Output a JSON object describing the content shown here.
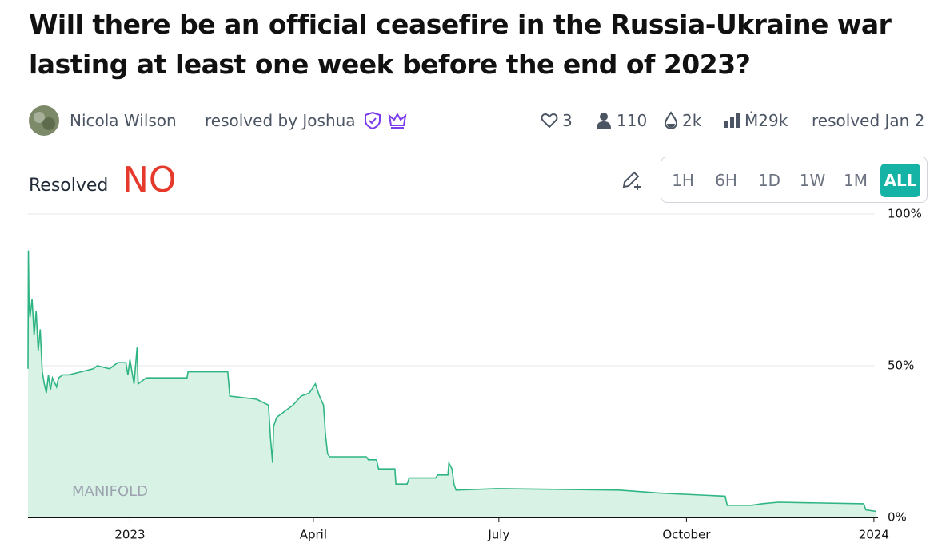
{
  "header": {
    "title": "Will there be an official ceasefire in the Russia-Ukraine war lasting at least one week before the end of 2023?",
    "author": "Nicola Wilson",
    "resolver": "resolved by Joshua",
    "stats": {
      "likes": "3",
      "traders": "110",
      "liquidity": "2k",
      "volume": "Ṁ29k",
      "resolved": "resolved Jan 2"
    }
  },
  "resolution": {
    "label": "Resolved",
    "outcome": "NO"
  },
  "time_buttons": [
    "1H",
    "6H",
    "1D",
    "1W",
    "1M",
    "ALL"
  ],
  "watermark": "MANIFOLD",
  "chart_data": {
    "type": "line",
    "color": "#2fb584",
    "fill_color": "#d9f2e6",
    "x": [
      -50,
      -49.8,
      -49.5,
      -49,
      -48,
      -47,
      -46,
      -45,
      -44,
      -43,
      -42,
      -41,
      -40,
      -39,
      -38,
      -36,
      -35,
      -33,
      -30,
      -24,
      -18,
      -16,
      -10,
      -6,
      -2,
      -1,
      0,
      2,
      3.5,
      4,
      8,
      28,
      28.5,
      48,
      49,
      62,
      68,
      69,
      70,
      70.5,
      72,
      76,
      80,
      84,
      88,
      90,
      91,
      93,
      95,
      96,
      97,
      98,
      116,
      117,
      121,
      122,
      130,
      130.5,
      136,
      137,
      150,
      151,
      156,
      156.5,
      158,
      159,
      160,
      180,
      240,
      260,
      292,
      293,
      305,
      310,
      318,
      360,
      361,
      366
    ],
    "values": [
      49,
      88,
      70,
      66,
      72,
      60,
      68,
      55,
      62,
      48,
      44,
      41,
      47,
      42,
      46,
      43,
      46,
      47,
      47,
      48,
      49,
      50,
      49,
      51,
      51,
      47,
      52,
      44,
      56,
      44,
      46,
      46,
      48,
      48,
      40,
      39,
      37,
      26,
      18,
      30,
      33,
      35,
      37,
      40,
      41,
      43,
      44,
      40,
      37,
      27,
      21,
      20,
      20,
      19,
      19,
      16,
      16,
      11,
      11,
      13,
      13,
      14,
      14,
      18,
      16,
      11,
      9,
      9.5,
      9,
      8,
      7,
      4,
      4,
      4.5,
      5,
      4.5,
      2.5,
      2
    ],
    "xlim": [
      -50,
      367
    ],
    "xticks": [
      {
        "value": 0,
        "label": "2023"
      },
      {
        "value": 90,
        "label": "April"
      },
      {
        "value": 181,
        "label": "July"
      },
      {
        "value": 273,
        "label": "October"
      },
      {
        "value": 365,
        "label": "2024"
      }
    ],
    "ylim": [
      0,
      100
    ],
    "yticks": [
      {
        "value": 0,
        "label": "0%"
      },
      {
        "value": 50,
        "label": "50%"
      },
      {
        "value": 100,
        "label": "100%"
      }
    ],
    "grid": true
  }
}
